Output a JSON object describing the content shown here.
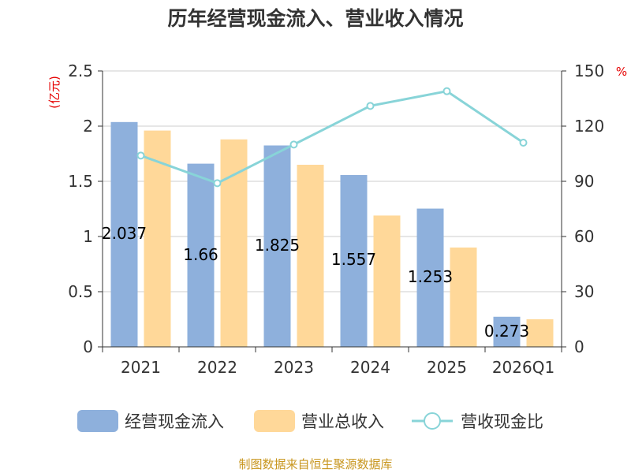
{
  "chart_data": {
    "type": "bar",
    "title": "历年经营现金流入、营业收入情况",
    "categories": [
      "2021",
      "2022",
      "2023",
      "2024",
      "2025",
      "2026Q1"
    ],
    "series": [
      {
        "name": "经营现金流入",
        "type": "bar",
        "axis": "left",
        "color": "#8eb0dc",
        "values": [
          2.037,
          1.66,
          1.825,
          1.557,
          1.253,
          0.273
        ],
        "labels_shown": true
      },
      {
        "name": "营业总收入",
        "type": "bar",
        "axis": "left",
        "color": "#ffd899",
        "values": [
          1.96,
          1.88,
          1.65,
          1.19,
          0.9,
          0.25
        ],
        "labels_shown": false
      },
      {
        "name": "营收现金比",
        "type": "line",
        "axis": "right",
        "color": "#88d4d8",
        "values": [
          104,
          89,
          110,
          131,
          139,
          111
        ],
        "labels_shown": false
      }
    ],
    "y_left": {
      "unit": "(亿元)",
      "ticks": [
        "0",
        "0.5",
        "1",
        "1.5",
        "2",
        "2.5"
      ],
      "ylim": [
        0,
        2.5
      ]
    },
    "y_right": {
      "unit": "%",
      "ticks": [
        "0",
        "30",
        "60",
        "90",
        "120",
        "150"
      ],
      "ylim": [
        0,
        150
      ]
    },
    "grid": true,
    "legend": "bottom",
    "source": "制图数据来自恒生聚源数据库"
  }
}
